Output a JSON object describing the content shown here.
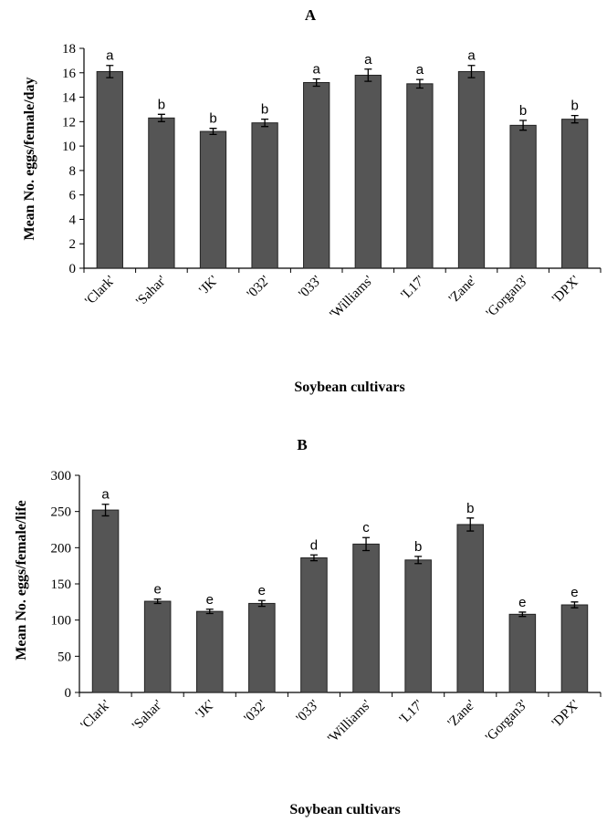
{
  "chart_data": [
    {
      "type": "bar",
      "title": "A",
      "xlabel": "Soybean cultivars",
      "ylabel": "Mean No. eggs/female/day",
      "ylim": [
        0,
        18
      ],
      "yticks": [
        0,
        2,
        4,
        6,
        8,
        10,
        12,
        14,
        16,
        18
      ],
      "categories": [
        "'Clark'",
        "'Sahar'",
        "'JK'",
        "'032'",
        "'033'",
        "'Williams'",
        "'L17'",
        "'Zane'",
        "'Gorgan3'",
        "'DPX'"
      ],
      "values": [
        16.1,
        12.3,
        11.2,
        11.9,
        15.2,
        15.8,
        15.1,
        16.1,
        11.7,
        12.2
      ],
      "errors": [
        0.5,
        0.3,
        0.25,
        0.3,
        0.3,
        0.5,
        0.35,
        0.5,
        0.4,
        0.3
      ],
      "letters": [
        "a",
        "b",
        "b",
        "b",
        "a",
        "a",
        "a",
        "a",
        "b",
        "b"
      ],
      "grid": false,
      "bar_color": "#555555"
    },
    {
      "type": "bar",
      "title": "B",
      "xlabel": "Soybean cultivars",
      "ylabel": "Mean No. eggs/female/life",
      "ylim": [
        0,
        300
      ],
      "yticks": [
        0,
        50,
        100,
        150,
        200,
        250,
        300
      ],
      "categories": [
        "'Clark'",
        "'Sahar'",
        "'JK'",
        "'032'",
        "'033'",
        "'Williams'",
        "'L17'",
        "'Zane'",
        "'Gorgan3'",
        "'DPX'"
      ],
      "values": [
        252,
        126,
        112,
        123,
        186,
        205,
        183,
        232,
        108,
        121
      ],
      "errors": [
        8,
        3,
        3,
        4,
        4,
        9,
        5,
        9,
        3,
        4
      ],
      "letters": [
        "a",
        "e",
        "e",
        "e",
        "d",
        "c",
        "b",
        "b",
        "e",
        "e"
      ],
      "grid": false,
      "bar_color": "#555555"
    }
  ]
}
